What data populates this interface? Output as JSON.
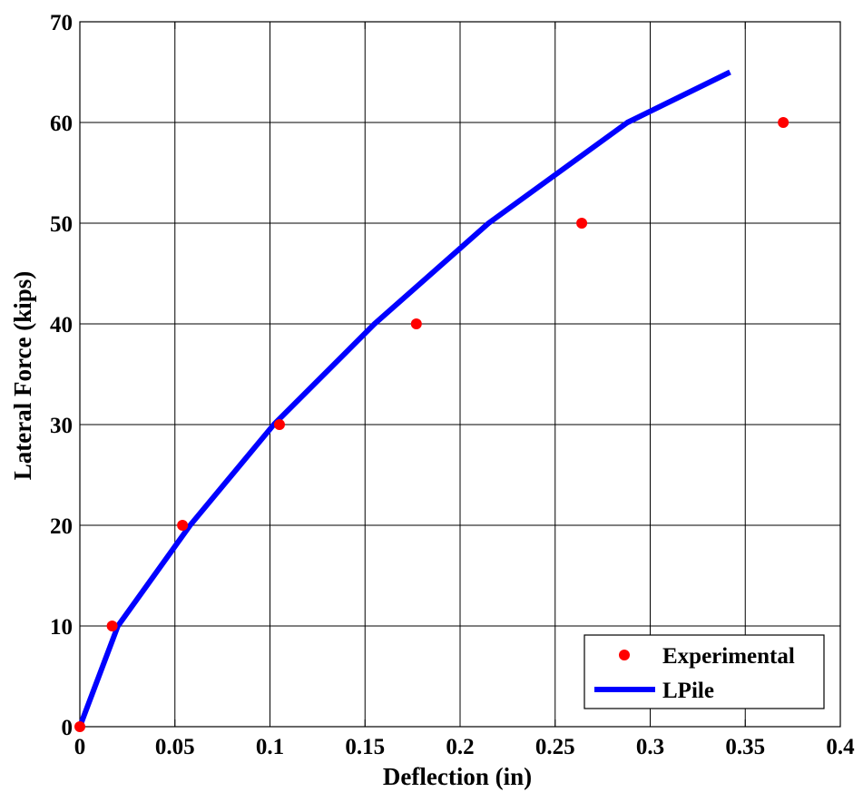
{
  "chart_data": {
    "type": "scatter",
    "xlabel": "Deflection (in)",
    "ylabel": "Lateral Force (kips)",
    "xlim": [
      0,
      0.4
    ],
    "ylim": [
      0,
      70
    ],
    "x_ticks": [
      "0",
      "0.05",
      "0.1",
      "0.15",
      "0.2",
      "0.25",
      "0.3",
      "0.35",
      "0.4"
    ],
    "y_ticks": [
      "0",
      "10",
      "20",
      "30",
      "40",
      "50",
      "60",
      "70"
    ],
    "grid": true,
    "legend_position": "bottom-right",
    "series": [
      {
        "name": "Experimental",
        "type": "scatter",
        "color": "#ff0000",
        "x": [
          0,
          0.017,
          0.054,
          0.105,
          0.177,
          0.264,
          0.37
        ],
        "y": [
          0,
          10,
          20,
          30,
          40,
          50,
          60
        ]
      },
      {
        "name": "LPile",
        "type": "line",
        "color": "#0000ff",
        "x": [
          0,
          0.02,
          0.058,
          0.102,
          0.155,
          0.215,
          0.288,
          0.342
        ],
        "y": [
          0,
          10,
          20,
          30,
          40,
          50,
          60,
          65
        ]
      }
    ]
  }
}
